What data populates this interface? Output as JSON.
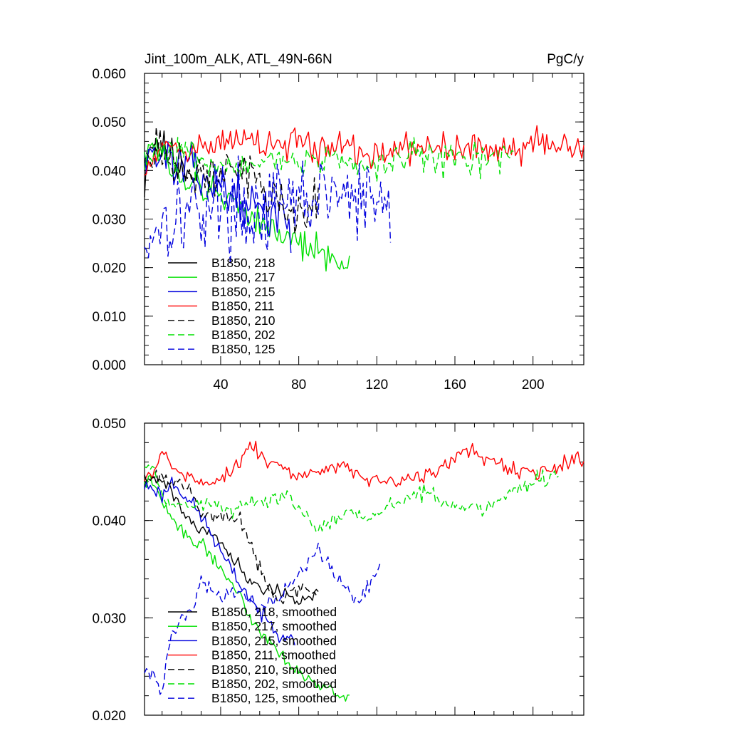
{
  "panel_top": {
    "title_left": "Jint_100m_ALK, ATL_49N-66N",
    "title_right": "PgC/y"
  },
  "chart_data": [
    {
      "id": "top",
      "type": "line",
      "title": "Jint_100m_ALK, ATL_49N-66N",
      "units": "PgC/y",
      "xlim": [
        1,
        226
      ],
      "ylim": [
        0.0,
        0.06
      ],
      "x_ticks": [
        40,
        80,
        120,
        160,
        200
      ],
      "y_ticks": [
        "0.000",
        "0.010",
        "0.020",
        "0.030",
        "0.040",
        "0.050",
        "0.060"
      ],
      "legend_position": "bottom-left",
      "series": [
        {
          "name": "B1850, 218",
          "color": "#000000",
          "dash": "solid",
          "length": 29,
          "anchors": [
            [
              1,
              0.037
            ],
            [
              3,
              0.046
            ],
            [
              8,
              0.045
            ],
            [
              15,
              0.043
            ],
            [
              22,
              0.041
            ],
            [
              29,
              0.039
            ]
          ],
          "noise": 0.003,
          "seed": 11
        },
        {
          "name": "B1850, 217",
          "color": "#00e000",
          "dash": "solid",
          "length": 106,
          "anchors": [
            [
              1,
              0.043
            ],
            [
              5,
              0.046
            ],
            [
              15,
              0.04
            ],
            [
              30,
              0.036
            ],
            [
              45,
              0.034
            ],
            [
              60,
              0.03
            ],
            [
              70,
              0.027
            ],
            [
              80,
              0.025
            ],
            [
              90,
              0.023
            ],
            [
              100,
              0.021
            ],
            [
              106,
              0.022
            ]
          ],
          "noise": 0.0025,
          "seed": 12
        },
        {
          "name": "B1850, 215",
          "color": "#0000dd",
          "dash": "solid",
          "length": 76,
          "anchors": [
            [
              1,
              0.044
            ],
            [
              10,
              0.043
            ],
            [
              20,
              0.041
            ],
            [
              30,
              0.039
            ],
            [
              40,
              0.037
            ],
            [
              50,
              0.034
            ],
            [
              60,
              0.032
            ],
            [
              70,
              0.03
            ],
            [
              76,
              0.029
            ]
          ],
          "noise": 0.0035,
          "seed": 13
        },
        {
          "name": "B1850, 211",
          "color": "#ff0000",
          "dash": "solid",
          "length": 226,
          "anchors": [
            [
              1,
              0.04
            ],
            [
              5,
              0.044
            ],
            [
              20,
              0.045
            ],
            [
              50,
              0.046
            ],
            [
              80,
              0.045
            ],
            [
              110,
              0.044
            ],
            [
              140,
              0.044
            ],
            [
              170,
              0.045
            ],
            [
              200,
              0.045
            ],
            [
              226,
              0.045
            ]
          ],
          "noise": 0.0025,
          "seed": 14
        },
        {
          "name": "B1850, 210",
          "color": "#000000",
          "dash": "dashed",
          "length": 90,
          "anchors": [
            [
              1,
              0.044
            ],
            [
              10,
              0.043
            ],
            [
              25,
              0.039
            ],
            [
              40,
              0.039
            ],
            [
              55,
              0.04
            ],
            [
              62,
              0.036
            ],
            [
              70,
              0.033
            ],
            [
              80,
              0.032
            ],
            [
              90,
              0.033
            ]
          ],
          "noise": 0.0035,
          "seed": 15
        },
        {
          "name": "B1850, 202",
          "color": "#00e000",
          "dash": "dashed",
          "length": 190,
          "anchors": [
            [
              1,
              0.043
            ],
            [
              10,
              0.044
            ],
            [
              30,
              0.042
            ],
            [
              50,
              0.041
            ],
            [
              70,
              0.043
            ],
            [
              90,
              0.042
            ],
            [
              110,
              0.041
            ],
            [
              140,
              0.043
            ],
            [
              170,
              0.042
            ],
            [
              190,
              0.044
            ]
          ],
          "noise": 0.0025,
          "seed": 16
        },
        {
          "name": "B1850, 125",
          "color": "#0000dd",
          "dash": "dashed",
          "length": 127,
          "anchors": [
            [
              1,
              0.024
            ],
            [
              5,
              0.028
            ],
            [
              10,
              0.03
            ],
            [
              25,
              0.032
            ],
            [
              40,
              0.033
            ],
            [
              60,
              0.031
            ],
            [
              80,
              0.034
            ],
            [
              100,
              0.035
            ],
            [
              115,
              0.033
            ],
            [
              127,
              0.033
            ]
          ],
          "noise": 0.0065,
          "seed": 17
        }
      ]
    },
    {
      "id": "bottom",
      "type": "line",
      "title": "",
      "xlim": [
        1,
        226
      ],
      "ylim": [
        0.02,
        0.05
      ],
      "x_ticks": [
        40,
        80,
        120,
        160,
        200
      ],
      "y_ticks": [
        "0.020",
        "0.030",
        "0.040",
        "0.050"
      ],
      "legend_position": "bottom-left",
      "series": [
        {
          "name": "B1850, 218, smoothed",
          "color": "#000000",
          "dash": "solid",
          "length": 90,
          "anchors": [
            [
              5,
              0.0443
            ],
            [
              12,
              0.044
            ],
            [
              22,
              0.0405
            ],
            [
              30,
              0.039
            ],
            [
              38,
              0.0385
            ],
            [
              45,
              0.0365
            ],
            [
              52,
              0.0345
            ],
            [
              60,
              0.033
            ],
            [
              70,
              0.033
            ],
            [
              80,
              0.0315
            ],
            [
              90,
              0.0325
            ]
          ],
          "noise": 0.0005,
          "seed": 21
        },
        {
          "name": "B1850, 217, smoothed",
          "color": "#00e000",
          "dash": "solid",
          "length": 106,
          "anchors": [
            [
              5,
              0.044
            ],
            [
              12,
              0.041
            ],
            [
              22,
              0.0385
            ],
            [
              30,
              0.0375
            ],
            [
              37,
              0.036
            ],
            [
              42,
              0.0345
            ],
            [
              48,
              0.033
            ],
            [
              55,
              0.03
            ],
            [
              62,
              0.0285
            ],
            [
              70,
              0.0265
            ],
            [
              80,
              0.0245
            ],
            [
              90,
              0.023
            ],
            [
              98,
              0.0225
            ],
            [
              106,
              0.0215
            ]
          ],
          "noise": 0.0005,
          "seed": 22
        },
        {
          "name": "B1850, 215, smoothed",
          "color": "#0000dd",
          "dash": "solid",
          "length": 78,
          "anchors": [
            [
              5,
              0.0435
            ],
            [
              10,
              0.0425
            ],
            [
              15,
              0.044
            ],
            [
              20,
              0.043
            ],
            [
              28,
              0.041
            ],
            [
              33,
              0.0395
            ],
            [
              38,
              0.0375
            ],
            [
              45,
              0.035
            ],
            [
              55,
              0.032
            ],
            [
              62,
              0.03
            ],
            [
              70,
              0.0285
            ],
            [
              78,
              0.028
            ]
          ],
          "noise": 0.0006,
          "seed": 23
        },
        {
          "name": "B1850, 211, smoothed",
          "color": "#ff0000",
          "dash": "solid",
          "length": 226,
          "anchors": [
            [
              5,
              0.0445
            ],
            [
              10,
              0.0468
            ],
            [
              20,
              0.045
            ],
            [
              35,
              0.0435
            ],
            [
              50,
              0.046
            ],
            [
              55,
              0.0478
            ],
            [
              65,
              0.046
            ],
            [
              80,
              0.0445
            ],
            [
              100,
              0.0455
            ],
            [
              120,
              0.044
            ],
            [
              135,
              0.0445
            ],
            [
              150,
              0.045
            ],
            [
              165,
              0.047
            ],
            [
              180,
              0.046
            ],
            [
              195,
              0.045
            ],
            [
              210,
              0.045
            ],
            [
              220,
              0.0465
            ],
            [
              226,
              0.046
            ]
          ],
          "noise": 0.0006,
          "seed": 24
        },
        {
          "name": "B1850, 210, smoothed",
          "color": "#000000",
          "dash": "dashed",
          "length": 90,
          "anchors": [
            [
              5,
              0.0445
            ],
            [
              15,
              0.044
            ],
            [
              25,
              0.043
            ],
            [
              32,
              0.04
            ],
            [
              42,
              0.0405
            ],
            [
              50,
              0.04
            ],
            [
              57,
              0.037
            ],
            [
              63,
              0.0335
            ],
            [
              70,
              0.032
            ],
            [
              80,
              0.033
            ],
            [
              90,
              0.0325
            ]
          ],
          "noise": 0.0006,
          "seed": 25
        },
        {
          "name": "B1850, 202, smoothed",
          "color": "#00e000",
          "dash": "dashed",
          "length": 213,
          "anchors": [
            [
              5,
              0.0455
            ],
            [
              12,
              0.042
            ],
            [
              25,
              0.0415
            ],
            [
              35,
              0.042
            ],
            [
              45,
              0.041
            ],
            [
              60,
              0.042
            ],
            [
              75,
              0.0425
            ],
            [
              90,
              0.039
            ],
            [
              105,
              0.041
            ],
            [
              115,
              0.04
            ],
            [
              130,
              0.042
            ],
            [
              145,
              0.043
            ],
            [
              160,
              0.0415
            ],
            [
              175,
              0.041
            ],
            [
              190,
              0.043
            ],
            [
              200,
              0.044
            ],
            [
              213,
              0.0448
            ]
          ],
          "noise": 0.0006,
          "seed": 26
        },
        {
          "name": "B1850, 125, smoothed",
          "color": "#0000dd",
          "dash": "dashed",
          "length": 122,
          "anchors": [
            [
              5,
              0.0245
            ],
            [
              10,
              0.0225
            ],
            [
              14,
              0.028
            ],
            [
              20,
              0.03
            ],
            [
              25,
              0.0305
            ],
            [
              30,
              0.034
            ],
            [
              40,
              0.032
            ],
            [
              50,
              0.033
            ],
            [
              60,
              0.031
            ],
            [
              70,
              0.032
            ],
            [
              80,
              0.0345
            ],
            [
              90,
              0.037
            ],
            [
              100,
              0.034
            ],
            [
              110,
              0.0315
            ],
            [
              118,
              0.034
            ],
            [
              122,
              0.036
            ]
          ],
          "noise": 0.0006,
          "seed": 27
        }
      ]
    }
  ]
}
